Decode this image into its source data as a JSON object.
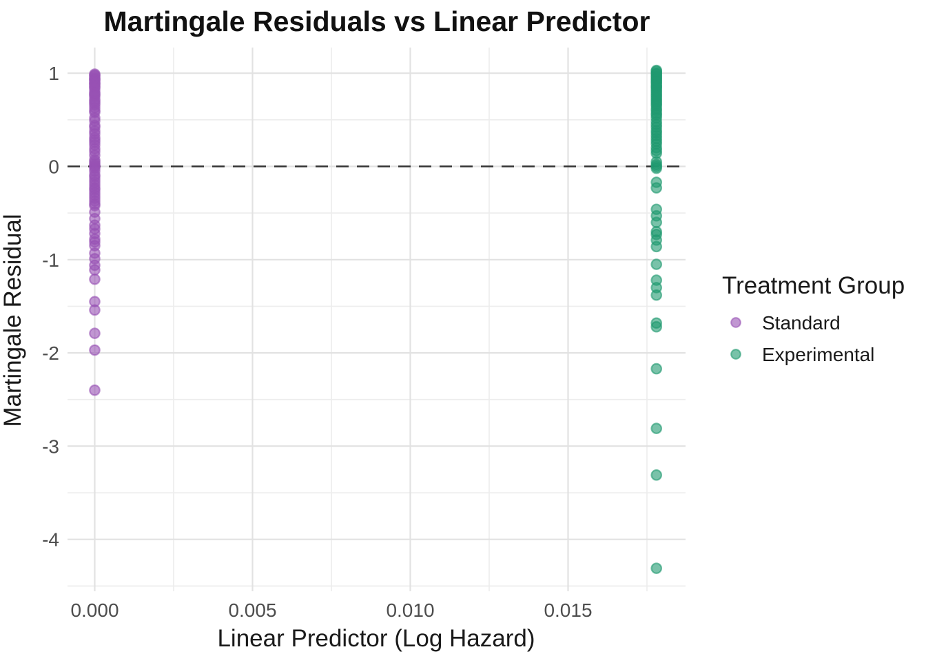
{
  "title": "Martingale Residuals vs Linear Predictor",
  "axes": {
    "x": {
      "label": "Linear Predictor (Log Hazard)",
      "tick_labels": [
        "0.000",
        "0.005",
        "0.010",
        "0.015"
      ],
      "tick_values": [
        0,
        0.005,
        0.01,
        0.015
      ]
    },
    "y": {
      "label": "Martingale Residual",
      "tick_labels": [
        "1",
        "0",
        "-1",
        "-2",
        "-3",
        "-4"
      ],
      "tick_values": [
        1,
        0,
        -1,
        -2,
        -3,
        -4
      ]
    }
  },
  "legend": {
    "title": "Treatment Group",
    "items": [
      {
        "label": "Standard",
        "color": "#9852B4"
      },
      {
        "label": "Experimental",
        "color": "#1F9A70"
      }
    ]
  },
  "chart_data": {
    "type": "scatter",
    "title": "Martingale Residuals vs Linear Predictor",
    "xlabel": "Linear Predictor (Log Hazard)",
    "ylabel": "Martingale Residual",
    "xlim": [
      -0.00089,
      0.01869
    ],
    "ylim": [
      -4.56,
      1.28
    ],
    "grid": true,
    "legend_position": "right",
    "reference_line": {
      "y": 0,
      "linetype": "dashed",
      "color": "#333333"
    },
    "minor_ticks_x": [
      0.0025,
      0.0075,
      0.0125,
      0.0175
    ],
    "minor_ticks_y": [
      0.5,
      -0.5,
      -1.5,
      -2.5,
      -3.5,
      -4.5
    ],
    "point_alpha": 0.6,
    "series": [
      {
        "name": "Standard",
        "color": "#9852B4",
        "x": 0.0,
        "y": [
          0.99,
          0.98,
          0.97,
          0.95,
          0.94,
          0.93,
          0.92,
          0.9,
          0.89,
          0.88,
          0.86,
          0.85,
          0.83,
          0.8,
          0.78,
          0.77,
          0.75,
          0.72,
          0.7,
          0.68,
          0.66,
          0.63,
          0.6,
          0.58,
          0.52,
          0.49,
          0.44,
          0.42,
          0.38,
          0.35,
          0.31,
          0.285,
          0.26,
          0.23,
          0.19,
          0.16,
          0.12,
          0.07,
          0.05,
          0.03,
          0.01,
          0.0,
          -0.02,
          -0.05,
          -0.09,
          -0.11,
          -0.14,
          -0.17,
          -0.2,
          -0.23,
          -0.25,
          -0.28,
          -0.31,
          -0.34,
          -0.37,
          -0.4,
          -0.42,
          -0.49,
          -0.56,
          -0.63,
          -0.67,
          -0.72,
          -0.78,
          -0.81,
          -0.85,
          -0.93,
          -0.99,
          -1.06,
          -1.11,
          -1.21,
          -1.45,
          -1.54,
          -1.79,
          -1.97,
          -2.4
        ]
      },
      {
        "name": "Experimental",
        "color": "#1F9A70",
        "x": 0.0178,
        "y": [
          1.03,
          1.02,
          1.0,
          0.99,
          0.97,
          0.96,
          0.94,
          0.93,
          0.91,
          0.9,
          0.88,
          0.86,
          0.85,
          0.83,
          0.81,
          0.79,
          0.77,
          0.75,
          0.73,
          0.71,
          0.69,
          0.67,
          0.65,
          0.62,
          0.6,
          0.57,
          0.55,
          0.52,
          0.48,
          0.45,
          0.42,
          0.385,
          0.36,
          0.33,
          0.3,
          0.27,
          0.24,
          0.2,
          0.17,
          0.14,
          0.05,
          0.02,
          0.0,
          -0.02,
          -0.17,
          -0.23,
          -0.46,
          -0.53,
          -0.6,
          -0.7,
          -0.73,
          -0.79,
          -0.86,
          -1.05,
          -1.22,
          -1.3,
          -1.38,
          -1.68,
          -1.72,
          -2.17,
          -2.81,
          -3.31,
          -4.31
        ]
      }
    ]
  }
}
